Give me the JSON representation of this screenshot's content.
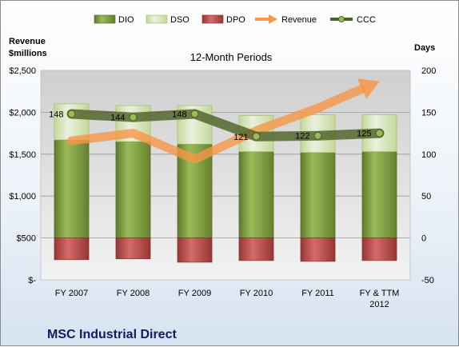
{
  "chart_data": {
    "type": "bar",
    "subtitle": "12-Month Periods",
    "company": "MSC Industrial Direct",
    "left_axis_title_line1": "Revenue",
    "left_axis_title_line2": "$millions",
    "right_axis_title": "Days",
    "categories": [
      "FY 2007",
      "FY 2008",
      "FY 2009",
      "FY 2010",
      "FY 2011",
      "FY & TTM 2012"
    ],
    "left_ticks": [
      "$-",
      "$500",
      "$1,000",
      "$1,500",
      "$2,000",
      "$2,500"
    ],
    "left_ylim": [
      0,
      2500
    ],
    "right_ticks": [
      "-50",
      "0",
      "50",
      "100",
      "150",
      "200"
    ],
    "right_ylim": [
      -50,
      200
    ],
    "legend_placement": "top",
    "series": [
      {
        "name": "DIO",
        "type": "bar",
        "axis": "right",
        "color": "#77933c",
        "values": [
          117,
          115,
          112,
          103,
          102,
          103
        ]
      },
      {
        "name": "DSO",
        "type": "bar",
        "axis": "right",
        "color": "#d7e4bd",
        "values": [
          43,
          43,
          46,
          43,
          45,
          44
        ]
      },
      {
        "name": "DPO",
        "type": "bar",
        "axis": "right",
        "color": "#c0504d",
        "values": [
          -26,
          -25,
          -29,
          -27,
          -28,
          -27
        ]
      },
      {
        "name": "Revenue",
        "type": "line-arrow",
        "axis": "left",
        "color": "#f79646",
        "values": [
          1660,
          1750,
          1440,
          1780,
          2050,
          2370
        ]
      },
      {
        "name": "CCC",
        "type": "line",
        "axis": "right",
        "color": "#4f6228",
        "values": [
          148,
          144,
          148,
          121,
          122,
          125
        ],
        "labels": [
          "148",
          "144",
          "148",
          "121",
          "122",
          "125"
        ]
      }
    ]
  }
}
